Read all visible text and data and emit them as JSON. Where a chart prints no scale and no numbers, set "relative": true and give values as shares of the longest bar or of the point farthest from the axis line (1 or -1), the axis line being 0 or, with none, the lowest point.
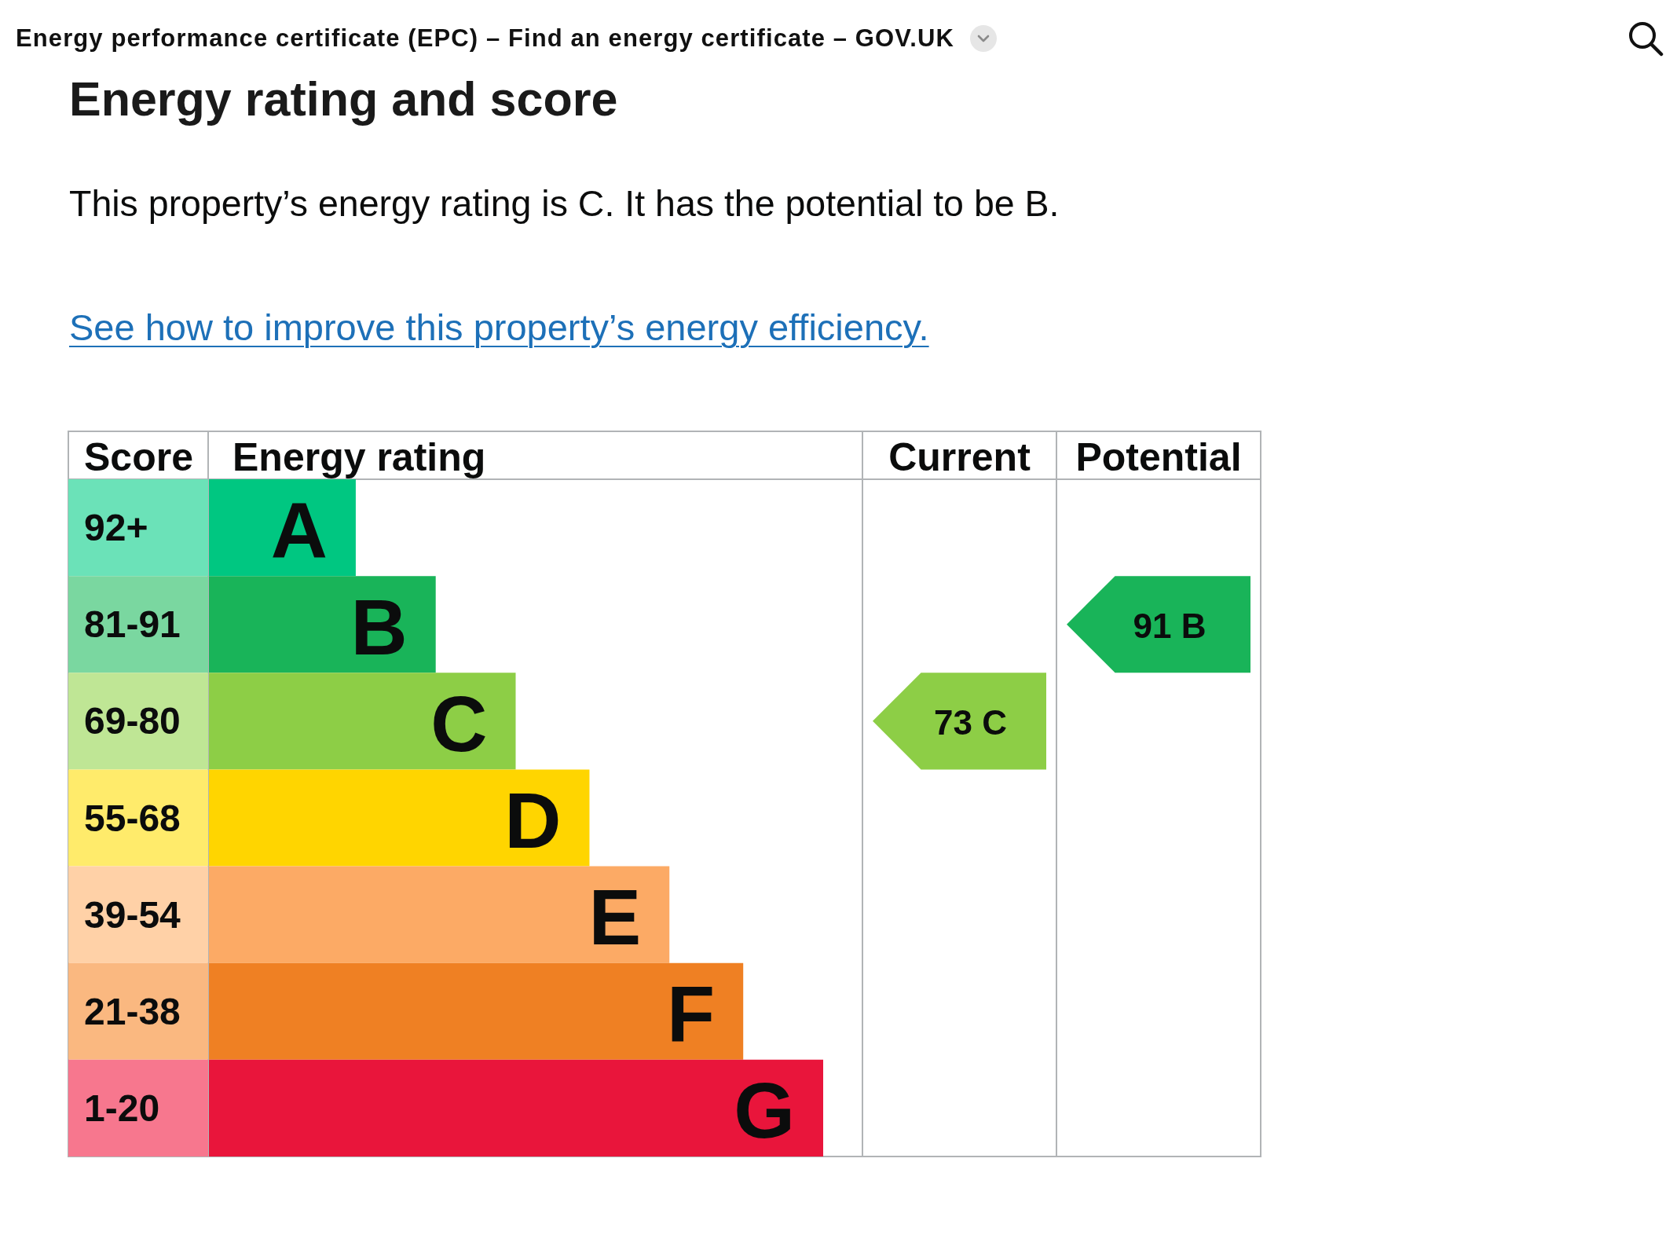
{
  "chart_data": {
    "type": "bar",
    "orientation": "horizontal",
    "relative": true,
    "title": "Energy rating and score",
    "subtitle": "This property’s energy rating is C. It has the potential to be B.",
    "ylabel": "Score",
    "xlabel": "Energy rating",
    "categories": [
      "92+",
      "81-91",
      "69-80",
      "55-68",
      "39-54",
      "21-38",
      "1-20"
    ],
    "values": [
      0.24,
      0.37,
      0.5,
      0.62,
      0.75,
      0.87,
      1
    ],
    "colors": [
      "#00c781",
      "#19b459",
      "#8dce46",
      "#ffd500",
      "#fcaa65",
      "#ef8023",
      "#e9153b"
    ],
    "tick_labels": "y",
    "annotations": [
      "Energy performance certificate (EPC) – Find an energy certificate – GOV.UK",
      "See how to improve this property’s energy efficiency.",
      "Current",
      "Potential",
      "73 C",
      "91 B",
      {
        "text": "A",
        "x": 0.24,
        "y": "92+"
      },
      {
        "text": "B",
        "x": 0.37,
        "y": "81-91"
      },
      {
        "text": "C",
        "x": 0.5,
        "y": "69-80"
      },
      {
        "text": "D",
        "x": 0.62,
        "y": "55-68"
      },
      {
        "text": "E",
        "x": 0.75,
        "y": "39-54"
      },
      {
        "text": "F",
        "x": 0.87,
        "y": "21-38"
      },
      {
        "text": "G",
        "x": 1,
        "y": "1-20"
      }
    ]
  }
}
